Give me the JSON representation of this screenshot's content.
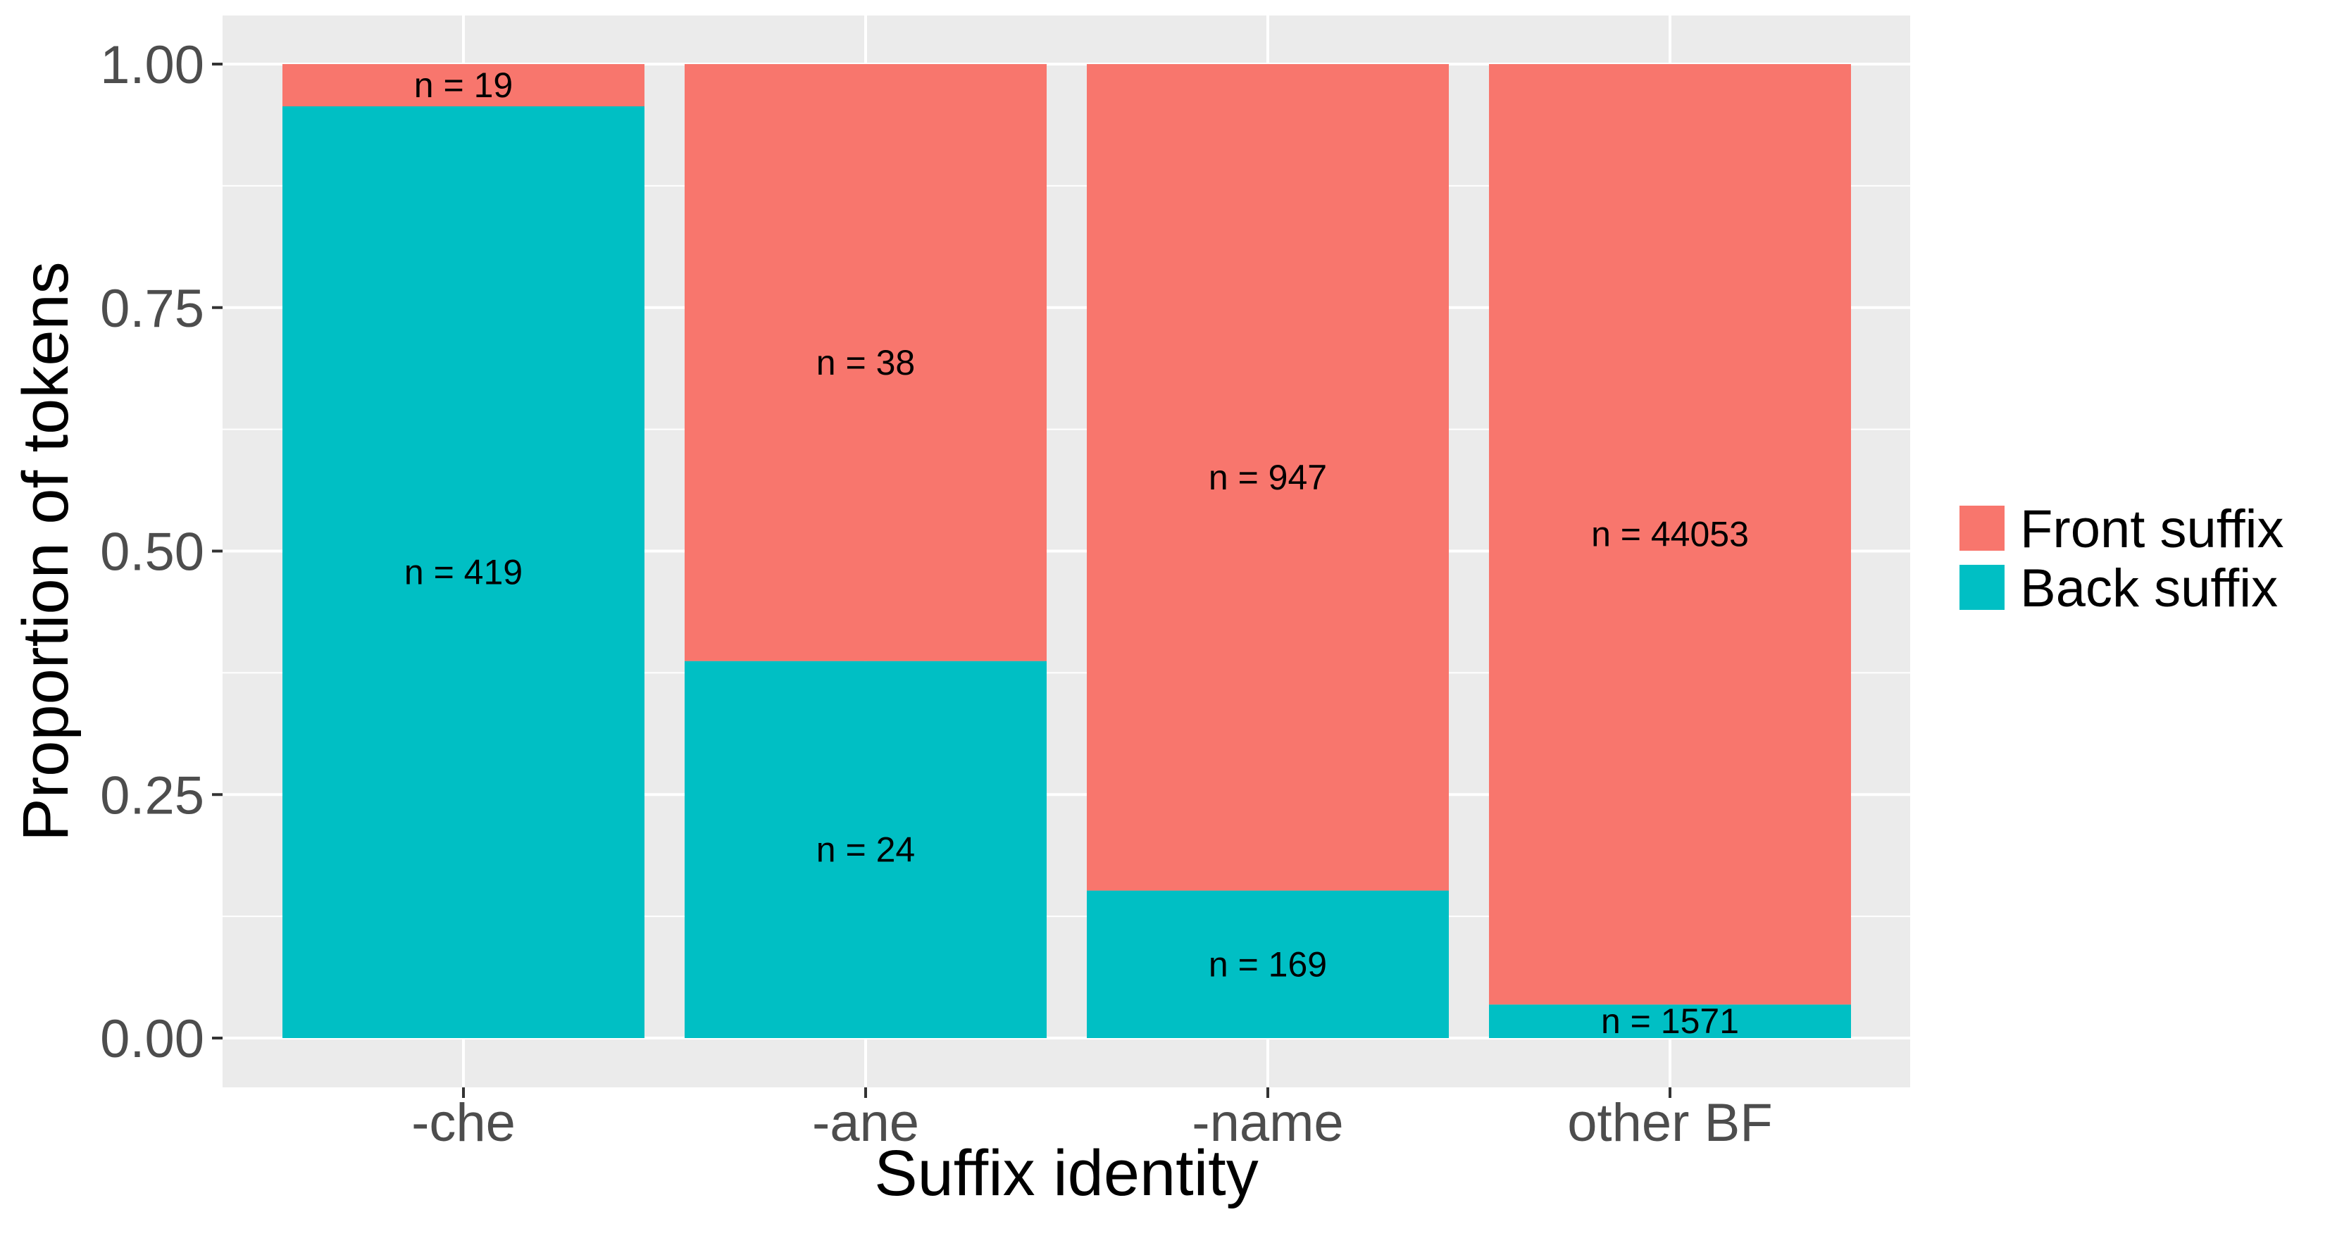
{
  "chart_data": {
    "type": "bar",
    "stacked": true,
    "proportional": true,
    "categories": [
      "-che",
      "-ane",
      "-name",
      "other BF"
    ],
    "series": [
      {
        "name": "Back suffix",
        "color": "#00BFC4",
        "counts": [
          419,
          24,
          169,
          1571
        ],
        "labels": [
          "n =  419",
          "n =  24",
          "n =  169",
          "n =  1571"
        ]
      },
      {
        "name": "Front suffix",
        "color": "#F8766D",
        "counts": [
          19,
          38,
          947,
          44053
        ],
        "labels": [
          "n =  19",
          "n =  38",
          "n =  947",
          "n =  44053"
        ]
      }
    ],
    "xlabel": "Suffix identity",
    "ylabel": "Proportion of tokens",
    "ylim": [
      0,
      1
    ],
    "yticks": [
      0,
      0.25,
      0.5,
      0.75,
      1
    ],
    "ytick_labels": [
      "0.00",
      "0.25",
      "0.50",
      "0.75",
      "1.00"
    ],
    "legend": {
      "position": "right",
      "order": [
        "Front suffix",
        "Back suffix"
      ]
    },
    "grid": true,
    "panel_color": "#EBEBEB"
  }
}
